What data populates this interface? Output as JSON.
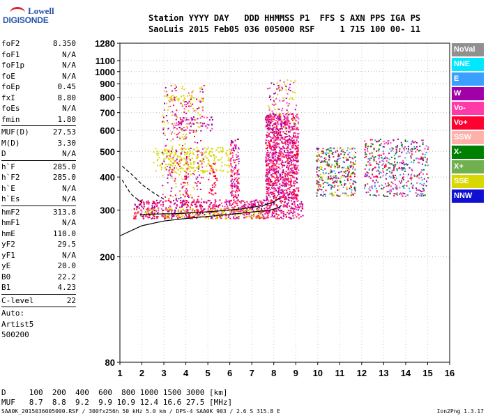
{
  "logo": {
    "line1": "Lowell",
    "line2": "DIGISONDE"
  },
  "header": {
    "line1": "Station YYYY DAY   DDD HHMMSS P1  FFS S AXN PPS IGA PS",
    "line2": "SaoLuis 2015 Feb05 036 005000 RSF     1 715 100 00- 11"
  },
  "params": [
    {
      "k": "foF2",
      "v": "8.350"
    },
    {
      "k": "foF1",
      "v": "N/A"
    },
    {
      "k": "foF1p",
      "v": "N/A"
    },
    {
      "k": "foE",
      "v": "N/A"
    },
    {
      "k": "foEp",
      "v": "0.45"
    },
    {
      "k": "fxI",
      "v": "8.80"
    },
    {
      "k": "foEs",
      "v": "N/A"
    },
    {
      "k": "fmin",
      "v": "1.80"
    },
    {
      "sep": true
    },
    {
      "k": "MUF(D)",
      "v": "27.53"
    },
    {
      "k": "M(D)",
      "v": "3.30"
    },
    {
      "k": "D",
      "v": "N/A"
    },
    {
      "sep": true
    },
    {
      "k": "h`F",
      "v": "285.0"
    },
    {
      "k": "h`F2",
      "v": "285.0"
    },
    {
      "k": "h`E",
      "v": "N/A"
    },
    {
      "k": "h`Es",
      "v": "N/A"
    },
    {
      "sep": true
    },
    {
      "k": "hmF2",
      "v": "313.8"
    },
    {
      "k": "hmF1",
      "v": "N/A"
    },
    {
      "k": "hmE",
      "v": "110.0"
    },
    {
      "k": "yF2",
      "v": "29.5"
    },
    {
      "k": "yF1",
      "v": "N/A"
    },
    {
      "k": "yE",
      "v": "20.0"
    },
    {
      "k": "B0",
      "v": "22.2"
    },
    {
      "k": "B1",
      "v": "4.23"
    },
    {
      "sep": true
    },
    {
      "k": "C-level",
      "v": "22"
    },
    {
      "sep": true
    },
    {
      "k": "Auto:",
      "v": ""
    },
    {
      "k": "Artist5",
      "v": ""
    },
    {
      "k": "500200",
      "v": ""
    }
  ],
  "legend": [
    {
      "label": "NoVal",
      "color": "#909090"
    },
    {
      "label": "NNE",
      "color": "#00e8ff"
    },
    {
      "label": "E",
      "color": "#3aa0ff"
    },
    {
      "label": "W",
      "color": "#a000a8"
    },
    {
      "label": "Vo-",
      "color": "#ff3aa8"
    },
    {
      "label": "Vo+",
      "color": "#ff0030"
    },
    {
      "label": "SSW",
      "color": "#ffb0a8"
    },
    {
      "label": "X-",
      "color": "#008000"
    },
    {
      "label": "X+",
      "color": "#70b050"
    },
    {
      "label": "SSE",
      "color": "#d8d800"
    },
    {
      "label": "NNW",
      "color": "#1010d0"
    }
  ],
  "chart_data": {
    "type": "scatter",
    "title": "",
    "xlabel": "",
    "ylabel": "",
    "xlim": [
      1,
      16
    ],
    "ylim": [
      80,
      1280
    ],
    "y_scale": "log",
    "x_ticks": [
      "1",
      "2",
      "3",
      "4",
      "5",
      "6",
      "7",
      "8",
      "9",
      "10",
      "11",
      "12",
      "13",
      "14",
      "15",
      "16"
    ],
    "y_ticks": [
      "80",
      "200",
      "300",
      "400",
      "500",
      "600",
      "700",
      "800",
      "900",
      "1000",
      "1100",
      "1280"
    ],
    "traces": [
      {
        "name": "height profile",
        "style": "solid",
        "x": [
          1.0,
          2.0,
          3.0,
          4.0,
          5.0,
          6.0,
          7.0,
          7.8,
          8.2,
          8.35
        ],
        "y": [
          240,
          262,
          273,
          279,
          284,
          289,
          295,
          300,
          306,
          313
        ]
      },
      {
        "name": "o-trace fit",
        "style": "solid",
        "x": [
          1.9,
          2.5,
          3.5,
          4.5,
          5.5,
          6.5,
          7.5,
          8.0,
          8.3
        ],
        "y": [
          288,
          290,
          291,
          294,
          298,
          303,
          312,
          322,
          335
        ]
      },
      {
        "name": "x-trace fit",
        "style": "dashed",
        "x": [
          1.1,
          1.6,
          2.0,
          2.5,
          3.0
        ],
        "y": [
          440,
          405,
          375,
          350,
          330
        ]
      },
      {
        "name": "valley",
        "style": "dashed",
        "x": [
          1.1,
          1.5,
          2.0
        ],
        "y": [
          390,
          345,
          320
        ]
      }
    ],
    "echo_clusters": [
      {
        "x": [
          1.6,
          9.3
        ],
        "y": [
          280,
          330
        ],
        "colors": [
          "#ff0030",
          "#ff3aa8",
          "#a000a8"
        ],
        "density": 2.0
      },
      {
        "x": [
          1.6,
          7.5
        ],
        "y": [
          280,
          305
        ],
        "colors": [
          "#d8d800",
          "#d8a000"
        ],
        "density": 1.0
      },
      {
        "x": [
          3.9,
          4.1
        ],
        "y": [
          340,
          460
        ],
        "colors": [
          "#ff0030"
        ],
        "density": 1.0
      },
      {
        "x": [
          5.0,
          5.4
        ],
        "y": [
          340,
          460
        ],
        "colors": [
          "#ff0030"
        ],
        "density": 1.0
      },
      {
        "x": [
          6.0,
          6.4
        ],
        "y": [
          320,
          560
        ],
        "colors": [
          "#ff0030",
          "#a000a8",
          "#ff3aa8"
        ],
        "density": 2.0
      },
      {
        "x": [
          7.6,
          9.1
        ],
        "y": [
          330,
          700
        ],
        "colors": [
          "#ff0030",
          "#a000a8",
          "#ff3aa8"
        ],
        "density": 3.0
      },
      {
        "x": [
          7.7,
          9.0
        ],
        "y": [
          600,
          940
        ],
        "colors": [
          "#ff3aa8",
          "#a000a8",
          "#d8d800"
        ],
        "density": 0.7
      },
      {
        "x": [
          3.5,
          5.2
        ],
        "y": [
          600,
          680
        ],
        "colors": [
          "#a000a8",
          "#ff3aa8"
        ],
        "density": 1.0
      },
      {
        "x": [
          3.0,
          4.5
        ],
        "y": [
          780,
          820
        ],
        "colors": [
          "#d8d800"
        ],
        "density": 1.5
      },
      {
        "x": [
          2.5,
          6.0
        ],
        "y": [
          420,
          520
        ],
        "colors": [
          "#d8d800"
        ],
        "density": 1.0
      },
      {
        "x": [
          9.9,
          11.7
        ],
        "y": [
          340,
          520
        ],
        "colors": [
          "#ff0030",
          "#a000a8",
          "#3aa0ff",
          "#d8d800",
          "#008000"
        ],
        "density": 1.5
      },
      {
        "x": [
          12.1,
          15.0
        ],
        "y": [
          340,
          560
        ],
        "colors": [
          "#ff0030",
          "#3aa0ff",
          "#a000a8",
          "#008000",
          "#ff3aa8"
        ],
        "density": 1.0
      },
      {
        "x": [
          2.9,
          4.8
        ],
        "y": [
          330,
          900
        ],
        "colors": [
          "#d8d800",
          "#a000a8",
          "#ff3aa8",
          "#ff0030"
        ],
        "density": 0.5
      }
    ]
  },
  "bottom": {
    "line1": "D     100  200  400  600  800 1000 1500 3000 [km]",
    "line2": "MUF   8.7  8.8  9.2  9.9 10.9 12.4 16.6 27.5 [MHz]"
  },
  "footer": {
    "text": "SAA0K_2015036005000.RSF / 300fx256h 50 kHz 5.0 km / DPS-4 SAA0K 903 / 2.6 S 315.8 E",
    "version": "Ion2Png 1.3.17"
  }
}
